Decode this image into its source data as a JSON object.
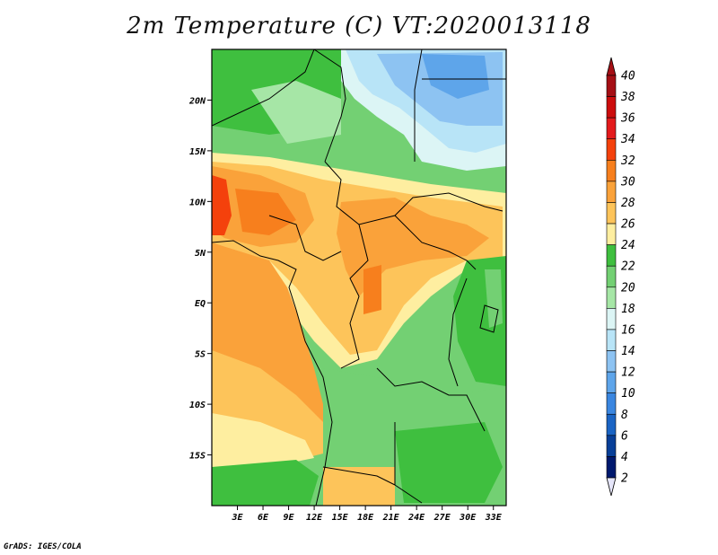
{
  "title": "2m Temperature (C) VT:2020013118",
  "credit": "GrADS: IGES/COLA",
  "map": {
    "variable": "2m Temperature",
    "units": "C",
    "valid_time": "2020013118",
    "lon_range": [
      0,
      34.5
    ],
    "lat_range": [
      -20,
      25
    ],
    "lon_ticks": [
      "3E",
      "6E",
      "9E",
      "12E",
      "15E",
      "18E",
      "21E",
      "24E",
      "27E",
      "30E",
      "33E"
    ],
    "lat_ticks": [
      "20N",
      "15N",
      "10N",
      "5N",
      "EQ",
      "5S",
      "10S",
      "15S"
    ]
  },
  "colorbar": {
    "labels": [
      "40",
      "38",
      "36",
      "34",
      "32",
      "30",
      "28",
      "26",
      "24",
      "22",
      "20",
      "18",
      "16",
      "14",
      "12",
      "10",
      "8",
      "6",
      "4",
      "2"
    ],
    "colors": [
      "#a50f15",
      "#cc0d0d",
      "#e31a1c",
      "#f4410c",
      "#f77f1d",
      "#faa23a",
      "#fdc45a",
      "#feeea0",
      "#3fbf3f",
      "#73d073",
      "#a6e6a6",
      "#dcf5f5",
      "#b8e4f7",
      "#8dc3f2",
      "#5ea5ea",
      "#3a86e0",
      "#1a64c4",
      "#083f98",
      "#00196e"
    ]
  }
}
